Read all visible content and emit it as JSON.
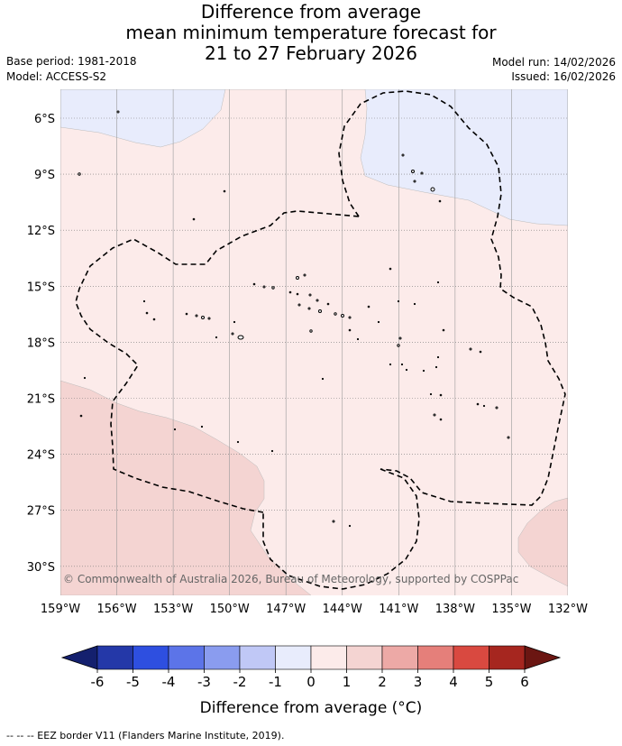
{
  "title": {
    "line1": "Difference from average",
    "line2": "mean minimum temperature forecast for",
    "line3": "21 to 27 February 2026"
  },
  "meta": {
    "base_period": "Base period: 1981-2018",
    "model": "Model: ACCESS-S2",
    "model_run": "Model run: 14/02/2026",
    "issued": "Issued: 16/02/2026"
  },
  "map": {
    "lat_labels": [
      "6°S",
      "9°S",
      "12°S",
      "15°S",
      "18°S",
      "21°S",
      "24°S",
      "27°S",
      "30°S"
    ],
    "lon_labels": [
      "159°W",
      "156°W",
      "153°W",
      "150°W",
      "147°W",
      "144°W",
      "141°W",
      "138°W",
      "135°W",
      "132°W"
    ],
    "copyright": "© Commonwealth of Australia 2026, Bureau of Meteorology, supported by COSPPac",
    "colors": {
      "neg_1_0": "#e8ecfc",
      "pos_0_1": "#fcebea",
      "pos_1_2": "#f4d4d2"
    }
  },
  "colorbar": {
    "ticks": [
      "-6",
      "-5",
      "-4",
      "-3",
      "-2",
      "-1",
      "0",
      "1",
      "2",
      "3",
      "4",
      "5",
      "6"
    ],
    "colors": [
      "#2438a8",
      "#2e4fe0",
      "#5c74e8",
      "#8a9cef",
      "#c0c8f6",
      "#e8ecfc",
      "#fcebea",
      "#f4d4d2",
      "#eda9a6",
      "#e57f7a",
      "#d94940",
      "#a6261f"
    ],
    "low_extend_color": "#14206e",
    "high_extend_color": "#6b1612",
    "label": "Difference from average (°C)"
  },
  "footer": "-- -- -- EEZ border V11 (Flanders Marine Institute, 2019)."
}
